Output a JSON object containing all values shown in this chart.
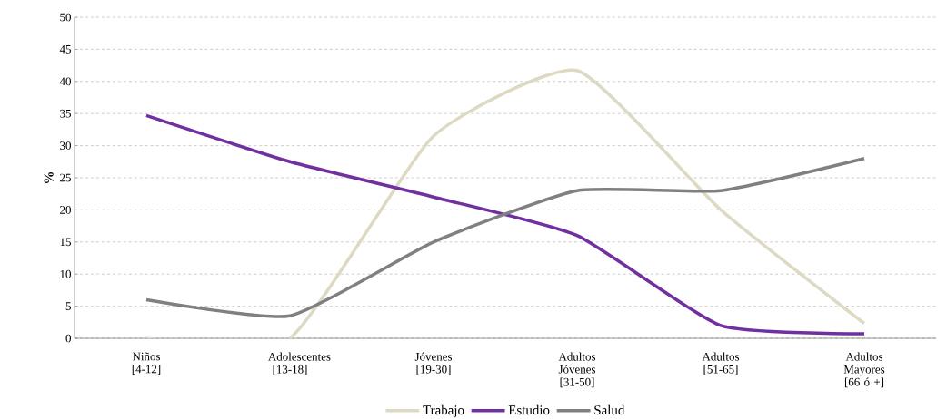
{
  "chart_data": {
    "type": "line",
    "ylabel": "%",
    "categories": [
      "Niños [4-12]",
      "Adolescentes [13-18]",
      "Jóvenes [19-30]",
      "Adultos Jóvenes [31-50]",
      "Adultos [51-65]",
      "Adultos Mayores [66 ó +]"
    ],
    "series": [
      {
        "name": "Trabajo",
        "color": "#ddd9c3",
        "values": [
          0,
          0,
          31.5,
          41.7,
          20,
          2.3
        ]
      },
      {
        "name": "Estudio",
        "color": "#7030a0",
        "values": [
          34.7,
          27.5,
          22,
          16,
          2,
          0.7
        ]
      },
      {
        "name": "Salud",
        "color": "#808080",
        "values": [
          6,
          3.5,
          15,
          23,
          23,
          28
        ]
      }
    ],
    "ylim": [
      0,
      50
    ],
    "yticks": [
      0,
      5,
      10,
      15,
      20,
      25,
      30,
      35,
      40,
      45,
      50
    ],
    "grid": "y",
    "legend": "bottom"
  }
}
